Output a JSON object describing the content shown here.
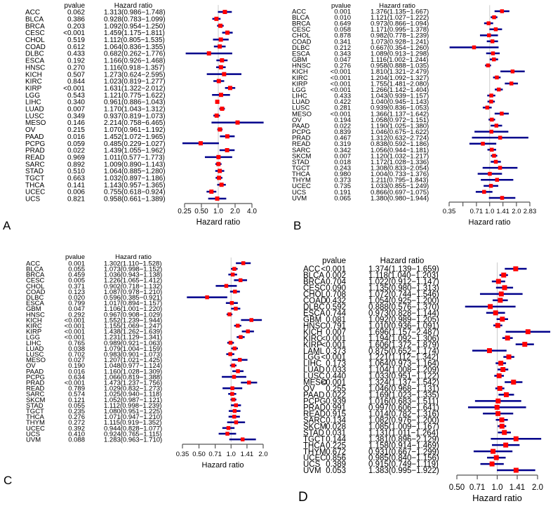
{
  "colors": {
    "ci_line": "#00008B",
    "point": "#FF0000",
    "axis": "#555555",
    "reference_line": "#CCCCCC"
  },
  "chart_data": [
    {
      "type": "forest",
      "panel_label": "A",
      "header_pvalue": "pvalue",
      "header_hr": "Hazard ratio",
      "xlabel": "Hazard ratio",
      "x_scale": "log",
      "xlim": [
        0.25,
        4.0
      ],
      "ticks": [
        0.25,
        0.5,
        1.0,
        2.0,
        4.0
      ],
      "tick_labels": [
        "0.25",
        "0.50",
        "1.0",
        "2.0",
        "4.0"
      ],
      "rows": [
        [
          "ACC",
          "0.062",
          1.313,
          0.986,
          1.748
        ],
        [
          "BLCA",
          "0.386",
          0.928,
          0.783,
          1.099
        ],
        [
          "BRCA",
          "0.203",
          1.092,
          0.954,
          1.25
        ],
        [
          "CESC",
          "<0.001",
          1.459,
          1.175,
          1.811
        ],
        [
          "CHOL",
          "0.519",
          1.112,
          0.805,
          1.535
        ],
        [
          "COAD",
          "0.612",
          1.064,
          0.836,
          1.355
        ],
        [
          "DLBC",
          "0.433",
          0.682,
          0.262,
          1.776
        ],
        [
          "ESCA",
          "0.192",
          1.166,
          0.926,
          1.468
        ],
        [
          "HNSC",
          "0.270",
          1.116,
          0.918,
          1.357
        ],
        [
          "KICH",
          "0.507",
          1.273,
          0.624,
          2.595
        ],
        [
          "KIRC",
          "0.844",
          1.023,
          0.819,
          1.277
        ],
        [
          "KIRP",
          "<0.001",
          1.631,
          1.322,
          2.012
        ],
        [
          "LGG",
          "0.543",
          1.121,
          0.775,
          1.622
        ],
        [
          "LIHC",
          "0.340",
          0.961,
          0.886,
          1.043
        ],
        [
          "LUAD",
          "0.007",
          1.17,
          1.043,
          1.312
        ],
        [
          "LUSC",
          "0.349",
          0.937,
          0.819,
          1.073
        ],
        [
          "MESO",
          "0.146",
          2.214,
          0.758,
          6.465
        ],
        [
          "OV",
          "0.215",
          1.07,
          0.961,
          1.192
        ],
        [
          "PAAD",
          "0.016",
          1.452,
          1.072,
          1.965
        ],
        [
          "PCPG",
          "0.059",
          0.485,
          0.229,
          1.027
        ],
        [
          "PRAD",
          "0.022",
          1.439,
          1.055,
          1.962
        ],
        [
          "READ",
          "0.969",
          1.011,
          0.577,
          1.773
        ],
        [
          "SARC",
          "0.892",
          1.009,
          0.89,
          1.143
        ],
        [
          "STAD",
          "0.510",
          1.064,
          0.885,
          1.28
        ],
        [
          "TGCT",
          "0.663",
          1.032,
          0.897,
          1.186
        ],
        [
          "THCA",
          "0.141",
          1.143,
          0.957,
          1.365
        ],
        [
          "UCEC",
          "0.006",
          0.755,
          0.618,
          0.924
        ],
        [
          "UCS",
          "0.821",
          0.958,
          0.661,
          1.389
        ]
      ]
    },
    {
      "type": "forest",
      "panel_label": "B",
      "header_pvalue": "pvalue",
      "header_hr": "Hazard ratio",
      "xlabel": "Hazard ratio",
      "x_scale": "log",
      "xlim": [
        0.35,
        2.83
      ],
      "ticks": [
        0.35,
        0.5,
        0.71,
        1.0,
        1.41,
        2.0,
        2.83
      ],
      "tick_labels": [
        "0.35",
        "",
        "0.71",
        "1.0",
        "1.41",
        "2.0",
        "2.83"
      ],
      "rows": [
        [
          "ACC",
          "0.001",
          1.376,
          1.135,
          1.667
        ],
        [
          "BLCA",
          "0.010",
          1.121,
          1.027,
          1.222
        ],
        [
          "BRCA",
          "0.649",
          0.973,
          0.866,
          1.094
        ],
        [
          "CESC",
          "0.058",
          1.171,
          0.995,
          1.378
        ],
        [
          "CHOL",
          "0.878",
          0.982,
          0.778,
          1.239
        ],
        [
          "COAD",
          "0.341",
          1.073,
          0.928,
          1.241
        ],
        [
          "DLBC",
          "0.212",
          0.667,
          0.354,
          1.26
        ],
        [
          "ESCA",
          "0.343",
          1.089,
          0.913,
          1.298
        ],
        [
          "GBM",
          "0.047",
          1.116,
          1.002,
          1.244
        ],
        [
          "HNSC",
          "0.276",
          0.958,
          0.888,
          1.035
        ],
        [
          "KICH",
          "<0.001",
          1.81,
          1.321,
          2.479
        ],
        [
          "KIRC",
          "<0.001",
          1.204,
          1.092,
          1.327
        ],
        [
          "KIRP",
          "<0.001",
          1.755,
          1.481,
          2.08
        ],
        [
          "LGG",
          "<0.001",
          1.266,
          1.142,
          1.404
        ],
        [
          "LIHC",
          "0.433",
          1.043,
          0.939,
          1.157
        ],
        [
          "LUAD",
          "0.422",
          1.04,
          0.945,
          1.143
        ],
        [
          "LUSC",
          "0.281",
          0.939,
          0.836,
          1.053
        ],
        [
          "MESO",
          "<0.001",
          1.366,
          1.137,
          1.642
        ],
        [
          "OV",
          "0.194",
          1.058,
          0.972,
          1.151
        ],
        [
          "PAAD",
          "0.022",
          1.19,
          1.025,
          1.38
        ],
        [
          "PCPG",
          "0.839",
          1.046,
          0.675,
          1.622
        ],
        [
          "PRAD",
          "0.467",
          1.312,
          0.632,
          2.724
        ],
        [
          "READ",
          "0.319",
          0.838,
          0.592,
          1.186
        ],
        [
          "SARC",
          "0.342",
          1.056,
          0.944,
          1.181
        ],
        [
          "SKCM",
          "0.007",
          1.12,
          1.032,
          1.217
        ],
        [
          "STAD",
          "0.018",
          1.172,
          1.028,
          1.336
        ],
        [
          "TGCT",
          "0.243",
          1.308,
          0.833,
          2.054
        ],
        [
          "THCA",
          "0.980",
          1.004,
          0.733,
          1.376
        ],
        [
          "THYM",
          "0.373",
          1.211,
          0.795,
          1.843
        ],
        [
          "UCEC",
          "0.735",
          1.033,
          0.855,
          1.249
        ],
        [
          "UCS",
          "0.191",
          0.866,
          0.697,
          1.075
        ],
        [
          "UVM",
          "0.065",
          1.38,
          0.98,
          1.944
        ]
      ]
    },
    {
      "type": "forest",
      "panel_label": "C",
      "header_pvalue": "pvalue",
      "header_hr": "Hazard ratio",
      "xlabel": "Hazard ratio",
      "x_scale": "log",
      "xlim": [
        0.35,
        2.0
      ],
      "ticks": [
        0.35,
        0.5,
        0.71,
        1.0,
        1.41,
        2.0
      ],
      "tick_labels": [
        "0.35",
        "0.50",
        "0.71",
        "1.0",
        "1.41",
        "2.0"
      ],
      "rows": [
        [
          "ACC",
          "0.001",
          1.302,
          1.11,
          1.528
        ],
        [
          "BLCA",
          "0.055",
          1.073,
          0.998,
          1.152
        ],
        [
          "BRCA",
          "0.459",
          1.036,
          0.943,
          1.138
        ],
        [
          "CESC",
          "0.005",
          1.226,
          1.065,
          1.412
        ],
        [
          "CHOL",
          "0.371",
          0.902,
          0.718,
          1.132
        ],
        [
          "COAD",
          "0.123",
          1.087,
          0.978,
          1.21
        ],
        [
          "DLBC",
          "0.020",
          0.596,
          0.385,
          0.921
        ],
        [
          "ESCA",
          "0.799",
          1.017,
          0.894,
          1.157
        ],
        [
          "GBM",
          "0.047",
          1.106,
          1.001,
          1.22
        ],
        [
          "HNSC",
          "0.292",
          0.967,
          0.908,
          1.029
        ],
        [
          "KICH",
          "<0.001",
          1.552,
          1.239,
          1.944
        ],
        [
          "KIRC",
          "<0.001",
          1.155,
          1.069,
          1.247
        ],
        [
          "KIRP",
          "<0.001",
          1.438,
          1.262,
          1.639
        ],
        [
          "LGG",
          "<0.001",
          1.231,
          1.129,
          1.341
        ],
        [
          "LIHC",
          "0.765",
          0.989,
          0.921,
          1.063
        ],
        [
          "LUAD",
          "0.038",
          1.079,
          1.004,
          1.159
        ],
        [
          "LUSC",
          "0.702",
          0.983,
          0.901,
          1.073
        ],
        [
          "MESO",
          "0.027",
          1.207,
          1.021,
          1.425
        ],
        [
          "OV",
          "0.190",
          1.048,
          0.977,
          1.124
        ],
        [
          "PAAD",
          "0.016",
          1.16,
          1.028,
          1.309
        ],
        [
          "PCPG",
          "0.634",
          1.066,
          0.819,
          1.388
        ],
        [
          "PRAD",
          "<0.001",
          1.473,
          1.237,
          1.756
        ],
        [
          "READ",
          "0.789",
          1.029,
          0.832,
          1.273
        ],
        [
          "SARC",
          "0.574",
          1.025,
          0.94,
          1.118
        ],
        [
          "SKCM",
          "0.121",
          1.052,
          0.987,
          1.121
        ],
        [
          "STAD",
          "0.055",
          1.112,
          0.998,
          1.239
        ],
        [
          "TGCT",
          "0.235",
          1.08,
          0.951,
          1.225
        ],
        [
          "THCA",
          "0.276",
          1.071,
          0.947,
          1.21
        ],
        [
          "THYM",
          "0.272",
          1.115,
          0.919,
          1.352
        ],
        [
          "UCEC",
          "0.392",
          0.944,
          0.828,
          1.077
        ],
        [
          "UCS",
          "0.410",
          0.924,
          0.765,
          1.115
        ],
        [
          "UVM",
          "0.088",
          1.283,
          0.963,
          1.71
        ]
      ]
    },
    {
      "type": "forest",
      "panel_label": "D",
      "header_pvalue": "pvalue",
      "header_hr": "Hazard ratio",
      "xlabel": "Hazard ratio",
      "x_scale": "log",
      "xlim": [
        0.5,
        2.0
      ],
      "ticks": [
        0.5,
        0.71,
        1.0,
        1.41,
        2.0
      ],
      "tick_labels": [
        "0.50",
        "0.71",
        "1.0",
        "1.41",
        "2.0"
      ],
      "rows": [
        [
          "ACC",
          "<0.001",
          1.374,
          1.139,
          1.659
        ],
        [
          "BLCA",
          "0.002",
          1.118,
          1.04,
          1.203
        ],
        [
          "BRCA",
          "0.704",
          1.022,
          0.912,
          1.147
        ],
        [
          "CESC",
          "0.090",
          1.135,
          0.98,
          1.313
        ],
        [
          "CHOL",
          "0.708",
          1.072,
          0.744,
          1.546
        ],
        [
          "COAD",
          "0.432",
          1.054,
          0.925,
          1.2
        ],
        [
          "DLBC",
          "0.592",
          0.888,
          0.576,
          1.37
        ],
        [
          "ESCA",
          "0.744",
          0.973,
          0.828,
          1.144
        ],
        [
          "GBM",
          "0.081",
          1.092,
          0.989,
          1.205
        ],
        [
          "HNSC",
          "0.791",
          1.01,
          0.936,
          1.091
        ],
        [
          "KICH",
          "0.007",
          1.696,
          1.157,
          2.487
        ],
        [
          "KIRC",
          "<0.001",
          1.194,
          1.092,
          1.306
        ],
        [
          "KIRP",
          "<0.001",
          1.606,
          1.372,
          1.879
        ],
        [
          "LAML",
          "0.373",
          0.875,
          0.652,
          1.174
        ],
        [
          "LGG",
          "<0.001",
          1.221,
          1.112,
          1.342
        ],
        [
          "LIHC",
          "0.173",
          1.064,
          0.973,
          1.164
        ],
        [
          "LUAD",
          "0.033",
          1.104,
          1.008,
          1.209
        ],
        [
          "LUSC",
          "0.440",
          1.033,
          0.951,
          1.122
        ],
        [
          "MESO",
          "<0.001",
          1.324,
          1.137,
          1.542
        ],
        [
          "OV",
          "0.255",
          1.046,
          0.968,
          1.131
        ],
        [
          "PAAD",
          "0.022",
          1.169,
          1.023,
          1.335
        ],
        [
          "PCPG",
          "0.939",
          1.016,
          0.683,
          1.511
        ],
        [
          "PRAD",
          "0.991",
          0.997,
          0.606,
          1.641
        ],
        [
          "READ",
          "0.915",
          1.014,
          0.782,
          1.316
        ],
        [
          "SARC",
          "0.134",
          1.082,
          0.976,
          1.2
        ],
        [
          "SKCM",
          "0.028",
          1.085,
          1.009,
          1.167
        ],
        [
          "STAD",
          "0.031",
          1.131,
          1.011,
          1.264
        ],
        [
          "TGCT",
          "0.144",
          1.381,
          0.896,
          2.129
        ],
        [
          "THCA",
          "0.225",
          1.158,
          0.914,
          1.469
        ],
        [
          "THYM",
          "0.672",
          0.931,
          0.667,
          1.299
        ],
        [
          "UCEC",
          "0.856",
          0.985,
          0.84,
          1.156
        ],
        [
          "UCS",
          "0.389",
          0.915,
          0.749,
          1.119
        ],
        [
          "UVM",
          "0.053",
          1.383,
          0.995,
          1.922
        ]
      ]
    }
  ]
}
